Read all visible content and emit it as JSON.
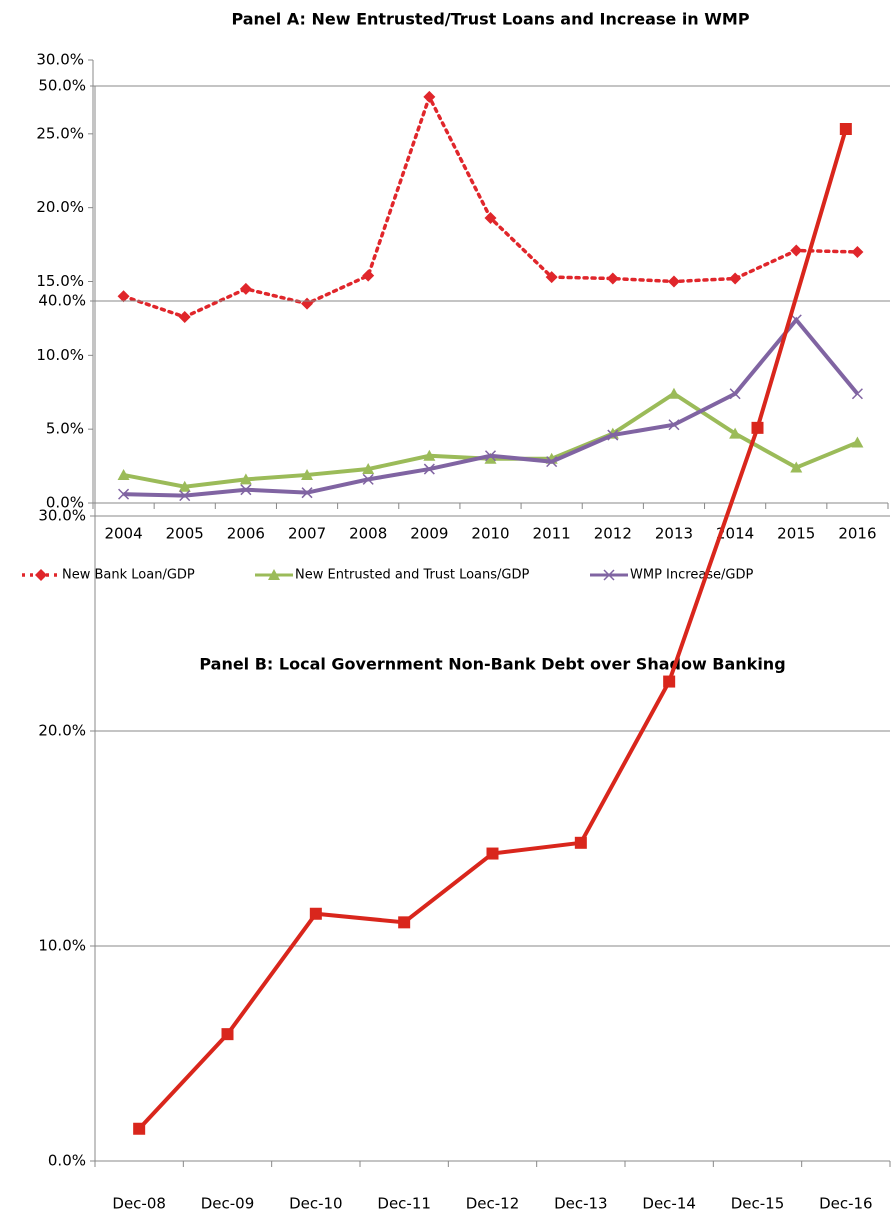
{
  "chart_data": [
    {
      "type": "line",
      "title": "Panel A: New Entrusted/Trust Loans and Increase in WMP",
      "categories": [
        "2004",
        "2005",
        "2006",
        "2007",
        "2008",
        "2009",
        "2010",
        "2011",
        "2012",
        "2013",
        "2014",
        "2015",
        "2016"
      ],
      "series": [
        {
          "name": "New Bank Loan/GDP",
          "color": "#e0262b",
          "marker": "diamond",
          "dash": "dotted",
          "values": [
            14.0,
            12.6,
            14.5,
            13.5,
            15.4,
            27.5,
            19.3,
            15.3,
            15.2,
            15.0,
            15.2,
            17.1,
            17.0
          ]
        },
        {
          "name": "New Entrusted and Trust Loans/GDP",
          "color": "#9bbb59",
          "marker": "triangle",
          "dash": "solid",
          "values": [
            1.9,
            1.1,
            1.6,
            1.9,
            2.3,
            3.2,
            3.0,
            3.0,
            4.7,
            7.4,
            4.7,
            2.4,
            4.1
          ]
        },
        {
          "name": "WMP Increase/GDP",
          "color": "#8064a2",
          "marker": "x",
          "dash": "solid",
          "values": [
            0.6,
            0.5,
            0.9,
            0.7,
            1.6,
            2.3,
            3.2,
            2.8,
            4.6,
            5.3,
            7.4,
            12.4,
            7.4
          ]
        }
      ],
      "ylim": [
        0,
        30
      ],
      "yticks": [
        {
          "value": 0,
          "label": "0.0%"
        },
        {
          "value": 5,
          "label": "5.0%"
        },
        {
          "value": 10,
          "label": "10.0%"
        },
        {
          "value": 15,
          "label": "15.0%"
        },
        {
          "value": 20,
          "label": "20.0%"
        },
        {
          "value": 25,
          "label": "25.0%"
        },
        {
          "value": 30,
          "label": "30.0%"
        }
      ],
      "grid": false,
      "legend": "bottom"
    },
    {
      "type": "line",
      "title": "Panel B: Local Government Non-Bank Debt over Shadow Banking",
      "categories": [
        "Dec-08",
        "Dec-09",
        "Dec-10",
        "Dec-11",
        "Dec-12",
        "Dec-13",
        "Dec-14",
        "Dec-15",
        "Dec-16"
      ],
      "series": [
        {
          "color": "#d9261c",
          "marker": "square",
          "dash": "solid",
          "values": [
            1.5,
            5.9,
            11.5,
            11.1,
            14.3,
            14.8,
            22.3,
            34.1,
            48.0
          ]
        }
      ],
      "ylim": [
        0,
        50
      ],
      "yticks": [
        {
          "value": 0,
          "label": "0.0%"
        },
        {
          "value": 10,
          "label": "10.0%"
        },
        {
          "value": 20,
          "label": "20.0%"
        },
        {
          "value": 30,
          "label": "30.0%"
        },
        {
          "value": 40,
          "label": "40.0%"
        },
        {
          "value": 50,
          "label": "50.0%"
        }
      ],
      "grid": true
    }
  ]
}
